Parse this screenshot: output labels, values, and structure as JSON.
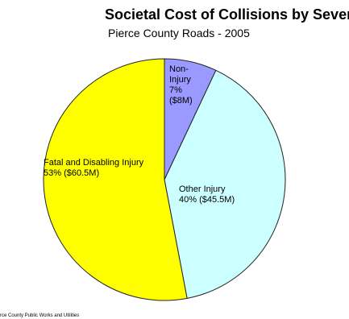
{
  "chart_data": {
    "type": "pie",
    "title": "Societal Cost of Collisions by Severity",
    "subtitle": "Pierce County Roads - 2005",
    "source": "rce County Public Works and Utilities",
    "categories": [
      "Non-Injury",
      "Other Injury",
      "Fatal and Disabling Injury"
    ],
    "values": [
      7,
      40,
      53
    ],
    "value_labels": [
      "7%",
      "40%",
      "53%"
    ],
    "amount_labels": [
      "($8M)",
      "($45.5M)",
      "($60.5M)"
    ],
    "colors": [
      "#9999ff",
      "#ccffff",
      "#ffff00"
    ]
  }
}
